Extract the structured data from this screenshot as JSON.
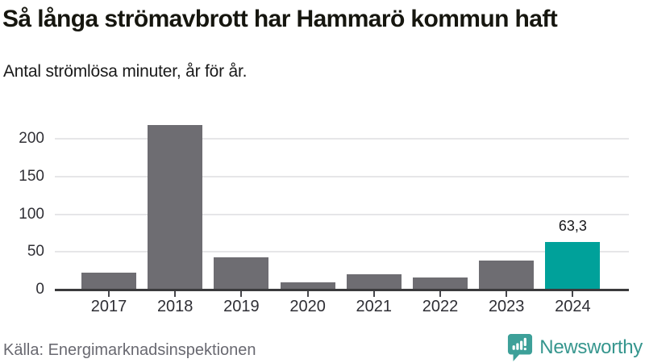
{
  "header": {
    "title": "Så långa strömavbrott har Hammarö kommun haft",
    "subtitle": "Antal strömlösa minuter, år för år."
  },
  "footer": {
    "source": "Källa: Energimarknadsinspektionen",
    "brand_name": "Newsworthy"
  },
  "colors": {
    "bar": "#6e6d72",
    "highlight": "#00a19a",
    "axis": "#3a3a3c",
    "grid": "#e6e6e8",
    "brand_teal": "#36968e",
    "brand_icon_teal": "#3da099"
  },
  "chart_data": {
    "type": "bar",
    "title": "Så långa strömavbrott har Hammarö kommun haft",
    "subtitle": "Antal strömlösa minuter, år för år.",
    "categories": [
      "2017",
      "2018",
      "2019",
      "2020",
      "2021",
      "2022",
      "2023",
      "2024"
    ],
    "values": [
      23,
      218,
      43,
      10,
      20,
      16,
      39,
      63.3
    ],
    "highlight_index": 7,
    "data_label": {
      "index": 7,
      "text": "63,3"
    },
    "xlabel": "",
    "ylabel": "Antal strömlösa minuter",
    "ylim": [
      0,
      230
    ],
    "yticks": [
      0,
      50,
      100,
      150,
      200
    ],
    "grid": "horizontal",
    "legend": "none"
  }
}
